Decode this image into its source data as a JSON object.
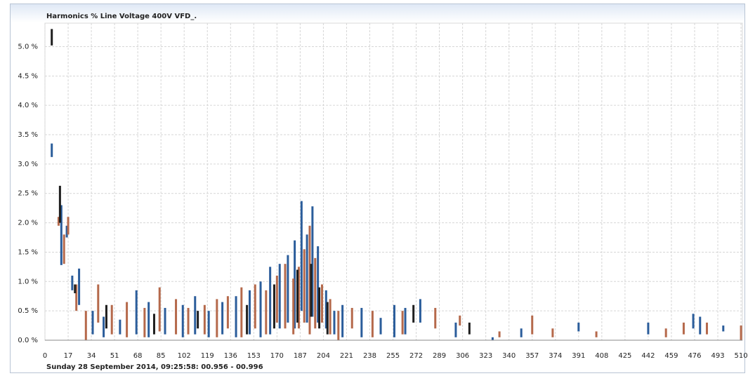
{
  "chart_data": {
    "type": "range-bar",
    "title": "Harmonics % Line Voltage 400V VFD_.",
    "footer": "Sunday 28 September 2014, 09:25:58: 00.956 - 00.996",
    "xlim": [
      0,
      511
    ],
    "ylim": [
      0,
      5.4
    ],
    "grid": true,
    "xticks": [
      0,
      17,
      34,
      51,
      68,
      85,
      102,
      119,
      136,
      153,
      170,
      187,
      204,
      221,
      238,
      255,
      272,
      289,
      306,
      323,
      340,
      357,
      374,
      391,
      408,
      425,
      442,
      459,
      476,
      493,
      510
    ],
    "yticks": [
      {
        "value": 0,
        "label": "0.0 %"
      },
      {
        "value": 0.5,
        "label": "0.5 %"
      },
      {
        "value": 1,
        "label": "1.0 %"
      },
      {
        "value": 1.5,
        "label": "1.5 %"
      },
      {
        "value": 2,
        "label": "2.0 %"
      },
      {
        "value": 2.5,
        "label": "2.5 %"
      },
      {
        "value": 3,
        "label": "3.0 %"
      },
      {
        "value": 3.5,
        "label": "3.5 %"
      },
      {
        "value": 4,
        "label": "4.0 %"
      },
      {
        "value": 4.5,
        "label": "4.5 %"
      },
      {
        "value": 5,
        "label": "5.0 %"
      }
    ],
    "series": [
      {
        "color": "#2b5d9b",
        "x": [
          5,
          12,
          16,
          20,
          25,
          35,
          43,
          55,
          67,
          76,
          88,
          101,
          110,
          120,
          130,
          140,
          150,
          158,
          165,
          172,
          178,
          183,
          188,
          192,
          196,
          200,
          206,
          212,
          218,
          232,
          246,
          256,
          264,
          275,
          301,
          328,
          349,
          391,
          442,
          475,
          480,
          497
        ],
        "lows": [
          3.12,
          1.28,
          1.75,
          0.85,
          0.6,
          0.1,
          0.05,
          0.1,
          0.1,
          0.05,
          0.1,
          0.05,
          0.1,
          0.05,
          0.1,
          0.05,
          0.1,
          0.05,
          0.1,
          0.2,
          0.3,
          0.2,
          0.5,
          0.3,
          0.4,
          0.3,
          0.2,
          0.1,
          0.05,
          0.05,
          0.1,
          0.05,
          0.1,
          0.3,
          0.05,
          0,
          0.05,
          0.15,
          0.1,
          0.2,
          0.1,
          0.15
        ],
        "values": [
          3.35,
          2.3,
          1.95,
          1.1,
          1.22,
          0.5,
          0.4,
          0.35,
          0.85,
          0.65,
          0.55,
          0.6,
          0.75,
          0.5,
          0.65,
          0.75,
          0.85,
          1,
          1.25,
          1.3,
          1.45,
          1.7,
          2.37,
          1.8,
          2.28,
          1.6,
          0.85,
          0.5,
          0.6,
          0.55,
          0.38,
          0.6,
          0.55,
          0.7,
          0.3,
          0.05,
          0.2,
          0.3,
          0.3,
          0.45,
          0.4,
          0.25
        ]
      },
      {
        "color": "#b5694b",
        "x": [
          10,
          14,
          17,
          23,
          30,
          39,
          49,
          60,
          73,
          84,
          96,
          105,
          117,
          126,
          134,
          144,
          154,
          162,
          170,
          176,
          182,
          186,
          190,
          194,
          198,
          203,
          209,
          215,
          225,
          240,
          262,
          286,
          304,
          333,
          357,
          372,
          404,
          455,
          468,
          485,
          510
        ],
        "lows": [
          1.95,
          1.3,
          1.8,
          0.5,
          0,
          0.3,
          0.1,
          0.05,
          0.05,
          0.15,
          0.1,
          0.1,
          0.1,
          0.05,
          0.2,
          0.05,
          0.2,
          0.1,
          0.3,
          0.2,
          0.1,
          0.2,
          0.3,
          0.1,
          0.2,
          0.3,
          0.1,
          0,
          0.2,
          0.05,
          0.1,
          0.2,
          0.25,
          0.05,
          0.1,
          0.05,
          0.05,
          0.05,
          0.1,
          0.1,
          0
        ],
        "values": [
          2.1,
          1.8,
          2.1,
          0.95,
          0.5,
          0.95,
          0.6,
          0.65,
          0.55,
          0.9,
          0.7,
          0.55,
          0.6,
          0.7,
          0.75,
          0.9,
          0.95,
          0.85,
          1.1,
          1.3,
          1.05,
          1.25,
          1.55,
          1.95,
          1.4,
          0.95,
          0.7,
          0.5,
          0.55,
          0.5,
          0.5,
          0.55,
          0.42,
          0.15,
          0.42,
          0.2,
          0.15,
          0.2,
          0.3,
          0.3,
          0.25
        ]
      },
      {
        "color": "#1e1e1e",
        "x": [
          5,
          11,
          22,
          45,
          80,
          112,
          148,
          168,
          185,
          195,
          201,
          207,
          270,
          311
        ],
        "lows": [
          5.02,
          2,
          0.8,
          0.2,
          0.1,
          0.2,
          0.1,
          0.2,
          0.3,
          0.4,
          0.2,
          0.1,
          0.3,
          0.1
        ],
        "values": [
          5.3,
          2.63,
          0.95,
          0.6,
          0.45,
          0.5,
          0.6,
          0.95,
          1.2,
          1.3,
          0.9,
          0.65,
          0.6,
          0.3
        ]
      }
    ]
  }
}
